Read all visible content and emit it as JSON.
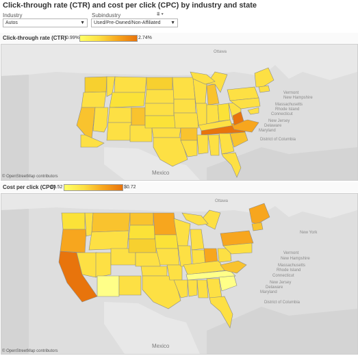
{
  "title": "Click-through rate (CTR) and cost per click (CPC) by industry and state",
  "filters": {
    "industry": {
      "label": "Industry",
      "value": "Autos"
    },
    "subindustry": {
      "label": "Subindustry",
      "value": "Used/Pre-Owned/Non-Affiliated"
    }
  },
  "ctr": {
    "title": "Click-through rate (CTR)",
    "legend_min": "0.99%",
    "legend_max": "2.74%",
    "attribution": "© OpenStreetMap contributors",
    "map_labels": {
      "country1": "Mexico",
      "ottawa": "Ottawa"
    },
    "colors": {
      "low": "#ffff66",
      "mid": "#fde044",
      "mid2": "#f9c32e",
      "high": "#f7a61e",
      "max": "#e8740c"
    }
  },
  "cpc": {
    "title": "Cost per click (CPC)",
    "legend_min": "$0.52",
    "legend_max": "$0.72",
    "attribution": "© OpenStreetMap contributors",
    "map_labels": {
      "country1": "Mexico",
      "ottawa": "Ottawa"
    }
  },
  "ne_labels": [
    "Vermont",
    "New Hampshire",
    "Massachusetts",
    "Rhode Island",
    "Connecticut",
    "New Jersey",
    "Delaware",
    "Maryland",
    "District of Columbia"
  ],
  "ne_labels_top": [
    "Vermont",
    "New Hampshire",
    "Massachusetts",
    "Rhode Island",
    "Connecticut",
    "New York",
    "New Jersey",
    "Delaware",
    "Maryland",
    "District of Columbia"
  ]
}
